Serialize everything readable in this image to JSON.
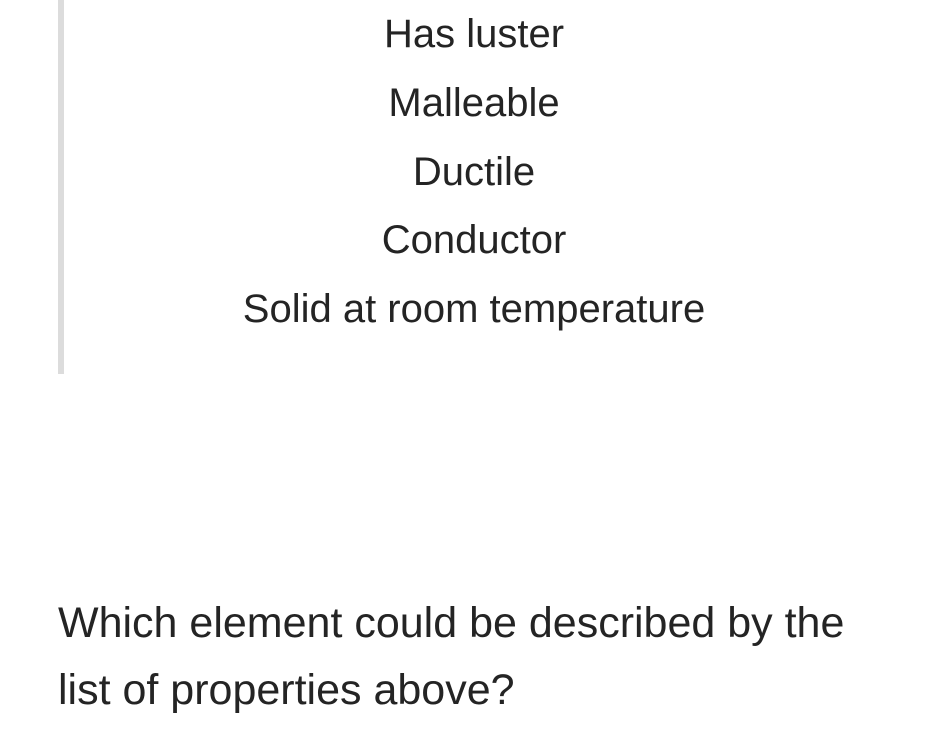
{
  "properties": {
    "items": [
      "Has luster",
      "Malleable",
      "Ductile",
      "Conductor",
      "Solid at room temperature"
    ]
  },
  "question": {
    "text": "Which element could be described by the list of properties above?"
  },
  "styling": {
    "background_color": "#ffffff",
    "text_color": "#242424",
    "border_color": "#dcdcdc",
    "property_fontsize": 40,
    "question_fontsize": 43,
    "font_family": "-apple-system, Helvetica Neue, Arial, sans-serif",
    "border_width": 6,
    "line_height_property": 1.72,
    "line_height_question": 1.55
  }
}
